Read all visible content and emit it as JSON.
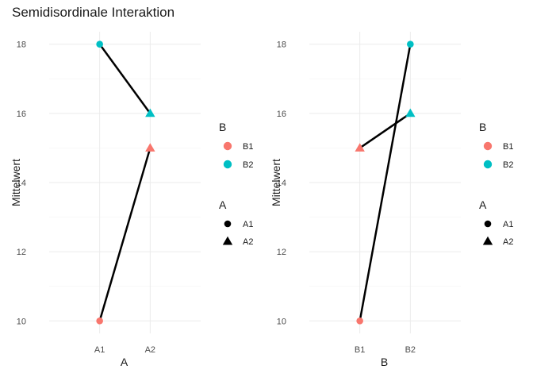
{
  "chart_data": [
    {
      "type": "line",
      "title": "Semidisordinale Interaktion",
      "xlabel": "A",
      "ylabel": "Mittelwert",
      "categories": [
        "A1",
        "A2"
      ],
      "ylim": [
        10,
        18
      ],
      "yticks": [
        10,
        12,
        14,
        16,
        18
      ],
      "grid": true,
      "line_groups": [
        {
          "name": "B1",
          "values": [
            10,
            15
          ]
        },
        {
          "name": "B2",
          "values": [
            18,
            16
          ]
        }
      ],
      "color_by": "B",
      "shape_by": "A",
      "points": [
        {
          "x": "A1",
          "y": 10,
          "B": "B1",
          "A": "A1"
        },
        {
          "x": "A1",
          "y": 18,
          "B": "B2",
          "A": "A1"
        },
        {
          "x": "A2",
          "y": 15,
          "B": "B1",
          "A": "A2"
        },
        {
          "x": "A2",
          "y": 16,
          "B": "B2",
          "A": "A2"
        }
      ],
      "legend_placement": "right"
    },
    {
      "type": "line",
      "title": "",
      "xlabel": "B",
      "ylabel": "Mittelwert",
      "categories": [
        "B1",
        "B2"
      ],
      "ylim": [
        10,
        18
      ],
      "yticks": [
        10,
        12,
        14,
        16,
        18
      ],
      "grid": true,
      "line_groups": [
        {
          "name": "A1",
          "values": [
            10,
            18
          ]
        },
        {
          "name": "A2",
          "values": [
            15,
            16
          ]
        }
      ],
      "color_by": "B",
      "shape_by": "A",
      "points": [
        {
          "x": "B1",
          "y": 10,
          "B": "B1",
          "A": "A1"
        },
        {
          "x": "B1",
          "y": 15,
          "B": "B1",
          "A": "A2"
        },
        {
          "x": "B2",
          "y": 18,
          "B": "B2",
          "A": "A1"
        },
        {
          "x": "B2",
          "y": 16,
          "B": "B2",
          "A": "A2"
        }
      ],
      "legend_placement": "right"
    }
  ],
  "legend": {
    "color": {
      "title": "B",
      "items": [
        {
          "label": "B1",
          "color": "#F8766D"
        },
        {
          "label": "B2",
          "color": "#00BFC4"
        }
      ]
    },
    "shape": {
      "title": "A",
      "items": [
        {
          "label": "A1",
          "shape": "circle"
        },
        {
          "label": "A2",
          "shape": "triangle"
        }
      ]
    }
  },
  "colors": {
    "line": "#000000",
    "grid": "#ebebeb",
    "text": "#1a1a1a",
    "tick": "#4d4d4d"
  }
}
